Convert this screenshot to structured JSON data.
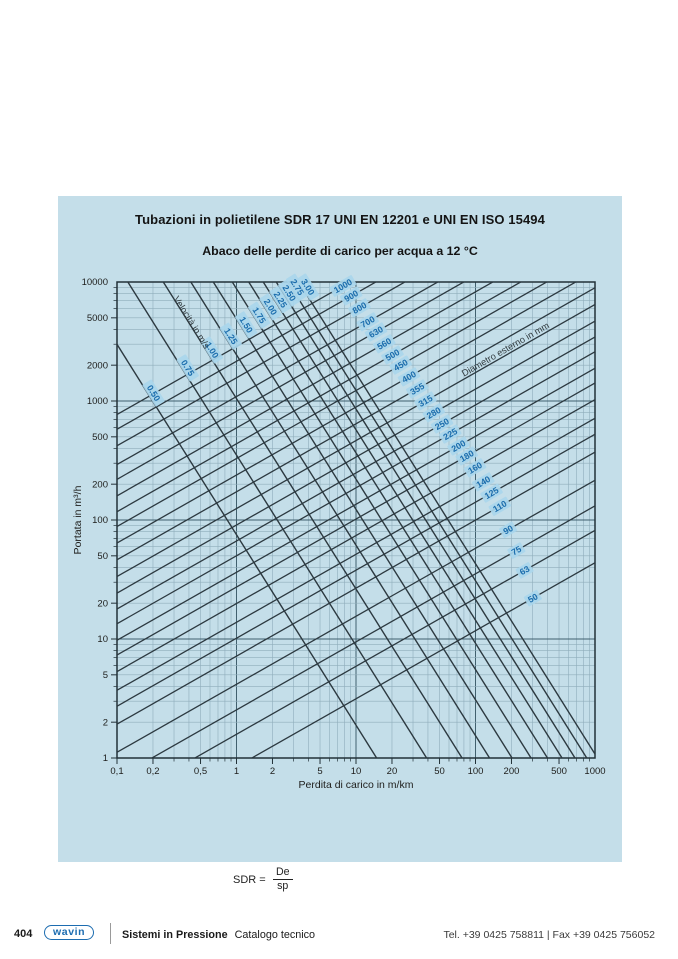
{
  "colors": {
    "panel_bg": "#c4dee9",
    "grid_minor": "#8fadbb",
    "grid_major": "#41606e",
    "plot_border": "#223138",
    "curve": "#2c3940",
    "label_text": "#1b6dad",
    "label_bg": "#a9d6ec",
    "axis_text": "#1d1d1b",
    "brand_blue": "#1c6cb0"
  },
  "chart_data": {
    "type": "line",
    "title": "Tubazioni in polietilene SDR 17 UNI EN 12201 e UNI EN ISO 15494",
    "subtitle": "Abaco delle perdite di carico per acqua a 12 °C",
    "xlabel": "Perdita di carico in m/km",
    "ylabel": "Portata in m³/h",
    "x_scale": "log",
    "y_scale": "log",
    "xlim": [
      0.1,
      1000
    ],
    "ylim": [
      1,
      10000
    ],
    "grid": true,
    "x_ticks": {
      "values": [
        0.1,
        0.2,
        0.5,
        1,
        2,
        5,
        10,
        20,
        50,
        100,
        200,
        500,
        1000
      ],
      "labels": [
        "0,1",
        "0,2",
        "0,5",
        "1",
        "2",
        "5",
        "10",
        "20",
        "50",
        "100",
        "200",
        "500",
        "1000"
      ]
    },
    "y_ticks": {
      "values": [
        10000,
        5000,
        2000,
        1000,
        500,
        200,
        100,
        50,
        20,
        10,
        5,
        2,
        1
      ],
      "labels": [
        "10000",
        "5000",
        "2000",
        "1000",
        "500",
        "200",
        "100",
        "50",
        "20",
        "10",
        "5",
        "2",
        "1"
      ]
    },
    "series": [
      {
        "role": "velocity",
        "name": "Velocità in m/s",
        "unit": "m/s",
        "values": [
          0.5,
          0.75,
          1.0,
          1.25,
          1.5,
          1.75,
          2.0,
          2.25,
          2.5,
          2.75,
          3.0
        ],
        "labels": [
          "0.50",
          "0.75",
          "1.00",
          "1.25",
          "1.50",
          "1.75",
          "2.00",
          "2.25",
          "2.50",
          "2.75",
          "3.00"
        ]
      },
      {
        "role": "diameter",
        "name": "Diametro esterno in mm",
        "unit": "mm",
        "sdr": 17,
        "values": [
          50,
          63,
          75,
          90,
          110,
          125,
          140,
          160,
          180,
          200,
          225,
          250,
          280,
          315,
          355,
          400,
          450,
          500,
          560,
          630,
          700,
          800,
          900,
          1000
        ],
        "labels": [
          "50",
          "63",
          "75",
          "90",
          "110",
          "125",
          "140",
          "160",
          "180",
          "200",
          "225",
          "250",
          "280",
          "315",
          "355",
          "400",
          "450",
          "500",
          "560",
          "630",
          "700",
          "800",
          "900",
          "1000"
        ]
      }
    ]
  },
  "formula": {
    "lhs": "SDR =",
    "numerator": "De",
    "denominator": "sp"
  },
  "footer": {
    "page_number": "404",
    "logo_text": "wavin",
    "series_bold": "Sistemi in Pressione",
    "series_regular": "Catalogo tecnico",
    "contact": "Tel. +39 0425 758811 | Fax +39 0425 756052"
  }
}
